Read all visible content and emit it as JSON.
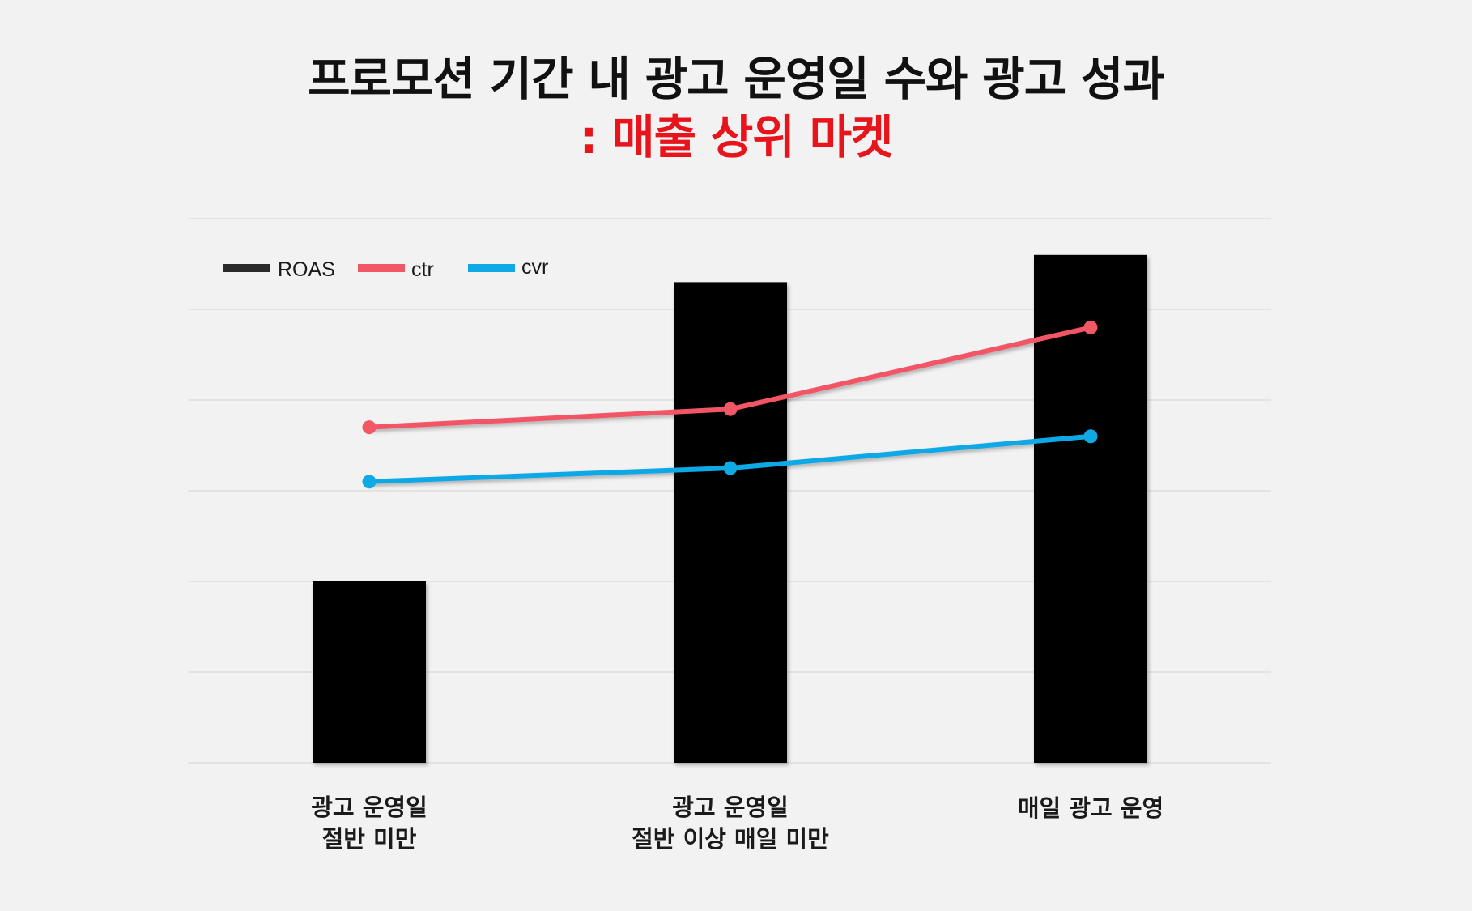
{
  "header": {
    "title": "프로모션 기간 내 광고 운영일 수와 광고 성과",
    "subtitle": ": 매출 상위 마켓"
  },
  "colors": {
    "background": "#f2f2f2",
    "roas": "#000000",
    "roas_legend": "#2a2a2a",
    "ctr": "#f25766",
    "cvr": "#0fa9e6",
    "title": "#111111",
    "subtitle": "#e8141b",
    "grid": "#dedede"
  },
  "chart_data": {
    "type": "bar",
    "categories": [
      [
        "광고 운영일",
        "절반 미만"
      ],
      [
        "광고 운영일",
        "절반 이상 매일 미만"
      ],
      [
        "매일 광고 운영"
      ]
    ],
    "series": [
      {
        "name": "ROAS",
        "type": "bar",
        "values": [
          2.0,
          5.3,
          5.6
        ]
      },
      {
        "name": "ctr",
        "type": "line",
        "values": [
          3.7,
          3.9,
          4.8
        ]
      },
      {
        "name": "cvr",
        "type": "line",
        "values": [
          3.1,
          3.25,
          3.6
        ]
      }
    ],
    "ylim": [
      0,
      6
    ],
    "ytick_values": [
      0,
      1,
      2,
      3,
      4,
      5,
      6
    ],
    "grid": true,
    "y_tick_labels_shown": false,
    "legend_position": "top-left",
    "xlabel": "",
    "ylabel": ""
  }
}
